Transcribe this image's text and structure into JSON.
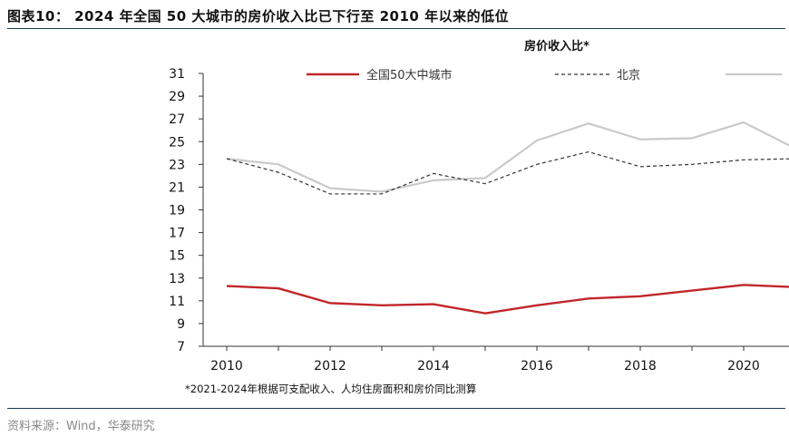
{
  "figure": {
    "title": "图表10：  2024 年全国 50 大城市的房价收入比已下行至 2010 年以来的低位",
    "source": "资料来源：Wind，华泰研究"
  },
  "chart_data": {
    "type": "line",
    "ylabel": "房价收入比*",
    "xlabel": "",
    "footnote": "*2021-2024年根据可支配收入、人均住房面积和房价同比测算",
    "x": [
      2010,
      2011,
      2012,
      2013,
      2014,
      2015,
      2016,
      2017,
      2018,
      2019,
      2020,
      2021
    ],
    "xlim": [
      2010,
      2021
    ],
    "x_ticks": [
      2010,
      2012,
      2014,
      2016,
      2018,
      2020
    ],
    "x_tick_labels": [
      "2010",
      "2012",
      "2014",
      "2016",
      "2018",
      "2020"
    ],
    "ylim": [
      7,
      31
    ],
    "y_ticks": [
      7,
      9,
      11,
      13,
      15,
      17,
      19,
      21,
      23,
      25,
      27,
      29,
      31
    ],
    "y_tick_labels": [
      "7",
      "9",
      "11",
      "13",
      "15",
      "17",
      "19",
      "21",
      "23",
      "25",
      "27",
      "29",
      "31"
    ],
    "grid": false,
    "legend_position": "top",
    "series": [
      {
        "name": "全国50大中城市",
        "color": "#c0262b",
        "style": "solid",
        "width": 2.4,
        "values": [
          12.3,
          12.1,
          10.8,
          10.6,
          10.7,
          9.9,
          10.6,
          11.2,
          11.4,
          11.9,
          12.4,
          12.2
        ]
      },
      {
        "name": "北京",
        "color": "#333333",
        "style": "dashed",
        "width": 1.2,
        "values": [
          23.5,
          22.3,
          20.4,
          20.4,
          22.2,
          21.3,
          23.0,
          24.1,
          22.8,
          23.0,
          23.4,
          23.5
        ]
      },
      {
        "name": "",
        "color": "#c9c9c9",
        "style": "solid",
        "width": 2.2,
        "values": [
          23.5,
          23.0,
          20.9,
          20.6,
          21.6,
          21.8,
          25.1,
          26.6,
          25.2,
          25.3,
          26.7,
          24.4
        ]
      }
    ]
  }
}
